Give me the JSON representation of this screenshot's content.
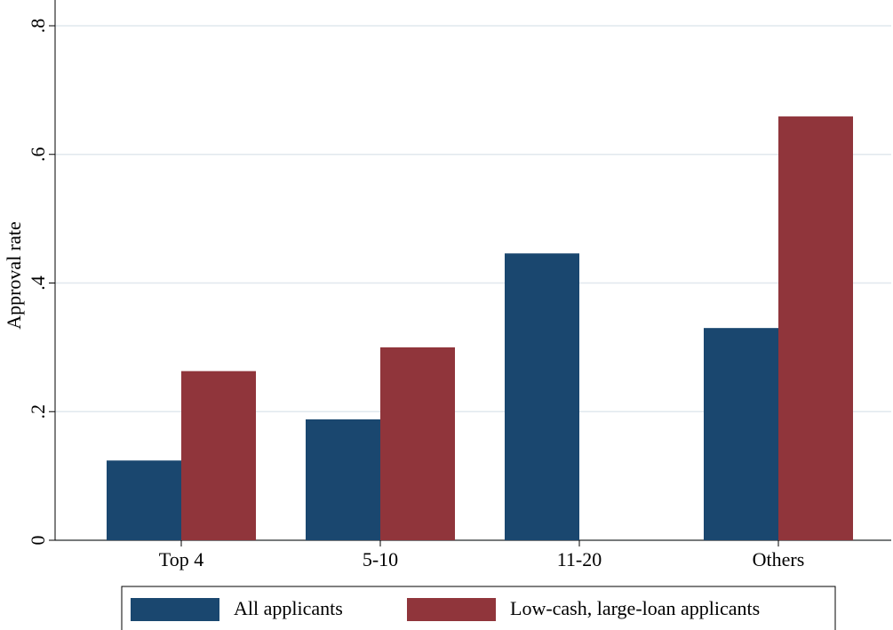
{
  "chart_data": {
    "type": "bar",
    "categories": [
      "Top 4",
      "5-10",
      "11-20",
      "Others"
    ],
    "y_label": "Approval rate",
    "series": [
      {
        "name": "All applicants",
        "color": "#1a476f",
        "values": [
          0.124,
          0.188,
          0.446,
          0.33
        ]
      },
      {
        "name": "Low-cash, large-loan applicants",
        "color": "#90353b",
        "values": [
          0.263,
          0.3,
          null,
          0.659
        ]
      }
    ],
    "ylim": [
      0,
      0.8
    ],
    "yticks": [
      0,
      {
        "value": 0.2,
        "label": ".2"
      },
      {
        "value": 0.4,
        "label": ".4"
      },
      {
        "value": 0.6,
        "label": ".6"
      },
      {
        "value": 0.8,
        "label": ".8"
      }
    ],
    "grid": true,
    "legend": "bottom"
  }
}
